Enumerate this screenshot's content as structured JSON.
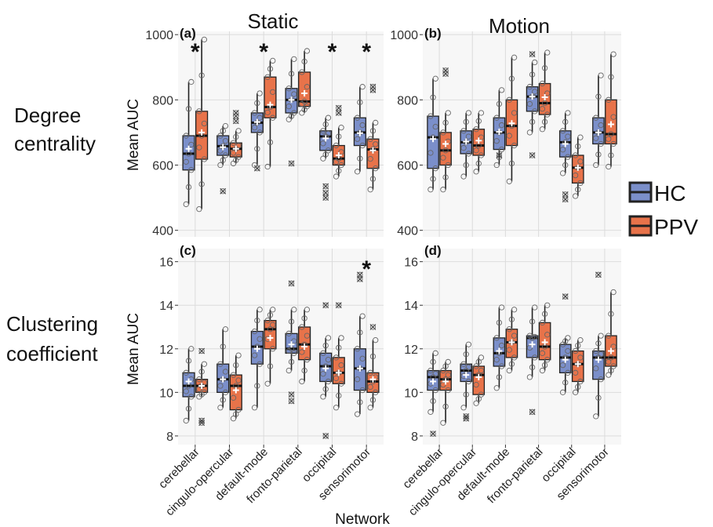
{
  "figure": {
    "column_titles": [
      "Static",
      "Motion"
    ],
    "row_titles": [
      [
        "Degree",
        "centrality"
      ],
      [
        "Clustering",
        "coefficient"
      ]
    ],
    "xlabel": "Network",
    "ylabel": "Mean AUC",
    "legend": [
      {
        "label": "HC",
        "color": "#7b8fca"
      },
      {
        "label": "PPV",
        "color": "#e8734a"
      }
    ],
    "colors": {
      "HC": "#7b8fca",
      "PPV": "#e8734a",
      "panel_bg": "#f7f7f7",
      "grid": "#dcdcdc"
    }
  },
  "chart_data": [
    {
      "panel": "(a)",
      "type": "box",
      "categories": [
        "cerebellar",
        "cingulo-opercular",
        "default-mode",
        "fronto-parietal",
        "occipital",
        "sensorimotor"
      ],
      "ylim": [
        380,
        1010
      ],
      "yticks": [
        400,
        600,
        800,
        1000
      ],
      "significant": [
        true,
        false,
        true,
        false,
        true,
        true
      ],
      "series": [
        {
          "name": "HC",
          "boxes": [
            {
              "min": 480,
              "q1": 585,
              "median": 635,
              "q3": 690,
              "max": 855,
              "mean": 650,
              "outliers": []
            },
            {
              "min": 600,
              "q1": 630,
              "median": 658,
              "q3": 690,
              "max": 720,
              "mean": 655,
              "outliers": [
                520
              ]
            },
            {
              "min": 600,
              "q1": 700,
              "median": 730,
              "q3": 760,
              "max": 820,
              "mean": 732,
              "outliers": [
                590
              ]
            },
            {
              "min": 740,
              "q1": 760,
              "median": 800,
              "q3": 835,
              "max": 925,
              "mean": 800,
              "outliers": [
                605
              ]
            },
            {
              "min": 620,
              "q1": 645,
              "median": 688,
              "q3": 705,
              "max": 745,
              "mean": 682,
              "outliers": [
                500,
                515,
                535
              ]
            },
            {
              "min": 580,
              "q1": 660,
              "median": 700,
              "q3": 745,
              "max": 840,
              "mean": 698,
              "outliers": []
            }
          ]
        },
        {
          "name": "PPV",
          "boxes": [
            {
              "min": 465,
              "q1": 618,
              "median": 690,
              "q3": 765,
              "max": 985,
              "mean": 700,
              "outliers": []
            },
            {
              "min": 605,
              "q1": 625,
              "median": 650,
              "q3": 668,
              "max": 705,
              "mean": 650,
              "outliers": [
                735,
                750,
                760
              ]
            },
            {
              "min": 595,
              "q1": 745,
              "median": 778,
              "q3": 870,
              "max": 920,
              "mean": 785,
              "outliers": []
            },
            {
              "min": 760,
              "q1": 780,
              "median": 795,
              "q3": 885,
              "max": 950,
              "mean": 820,
              "outliers": []
            },
            {
              "min": 565,
              "q1": 600,
              "median": 620,
              "q3": 660,
              "max": 715,
              "mean": 630,
              "outliers": [
                760,
                775
              ]
            },
            {
              "min": 525,
              "q1": 590,
              "median": 648,
              "q3": 680,
              "max": 730,
              "mean": 645,
              "outliers": [
                830,
                840
              ]
            }
          ]
        }
      ]
    },
    {
      "panel": "(b)",
      "type": "box",
      "categories": [
        "cerebellar",
        "cingulo-opercular",
        "default-mode",
        "fronto-parietal",
        "occipital",
        "sensorimotor"
      ],
      "ylim": [
        380,
        1010
      ],
      "yticks": [
        400,
        600,
        800,
        1000
      ],
      "significant": [
        false,
        false,
        false,
        false,
        false,
        false
      ],
      "series": [
        {
          "name": "HC",
          "boxes": [
            {
              "min": 525,
              "q1": 590,
              "median": 685,
              "q3": 750,
              "max": 865,
              "mean": 680,
              "outliers": []
            },
            {
              "min": 565,
              "q1": 635,
              "median": 670,
              "q3": 705,
              "max": 760,
              "mean": 672,
              "outliers": []
            },
            {
              "min": 600,
              "q1": 648,
              "median": 700,
              "q3": 745,
              "max": 830,
              "mean": 702,
              "outliers": [
                630
              ]
            },
            {
              "min": 700,
              "q1": 765,
              "median": 810,
              "q3": 840,
              "max": 915,
              "mean": 810,
              "outliers": [
                630,
                940
              ]
            },
            {
              "min": 575,
              "q1": 625,
              "median": 670,
              "q3": 705,
              "max": 760,
              "mean": 665,
              "outliers": [
                495,
                510
              ]
            },
            {
              "min": 600,
              "q1": 665,
              "median": 700,
              "q3": 745,
              "max": 875,
              "mean": 700,
              "outliers": []
            }
          ]
        },
        {
          "name": "PPV",
          "boxes": [
            {
              "min": 525,
              "q1": 600,
              "median": 645,
              "q3": 700,
              "max": 760,
              "mean": 665,
              "outliers": [
                880,
                890
              ]
            },
            {
              "min": 580,
              "q1": 630,
              "median": 660,
              "q3": 710,
              "max": 760,
              "mean": 675,
              "outliers": []
            },
            {
              "min": 550,
              "q1": 660,
              "median": 720,
              "q3": 800,
              "max": 930,
              "mean": 728,
              "outliers": []
            },
            {
              "min": 710,
              "q1": 755,
              "median": 790,
              "q3": 850,
              "max": 945,
              "mean": 808,
              "outliers": []
            },
            {
              "min": 505,
              "q1": 545,
              "median": 592,
              "q3": 630,
              "max": 685,
              "mean": 592,
              "outliers": []
            },
            {
              "min": 595,
              "q1": 665,
              "median": 695,
              "q3": 800,
              "max": 940,
              "mean": 725,
              "outliers": []
            }
          ]
        }
      ]
    },
    {
      "panel": "(c)",
      "type": "box",
      "categories": [
        "cerebellar",
        "cingulo-opercular",
        "default-mode",
        "fronto-parietal",
        "occipital",
        "sensorimotor"
      ],
      "ylim": [
        7.6,
        16.6
      ],
      "yticks": [
        8,
        10,
        12,
        14,
        16
      ],
      "significant": [
        false,
        false,
        false,
        false,
        false,
        true
      ],
      "series": [
        {
          "name": "HC",
          "boxes": [
            {
              "min": 8.7,
              "q1": 9.8,
              "median": 10.3,
              "q3": 10.9,
              "max": 12.0,
              "mean": 10.5,
              "outliers": []
            },
            {
              "min": 9.3,
              "q1": 10.0,
              "median": 10.6,
              "q3": 11.3,
              "max": 12.9,
              "mean": 10.6,
              "outliers": []
            },
            {
              "min": 9.3,
              "q1": 11.3,
              "median": 12.1,
              "q3": 12.8,
              "max": 13.8,
              "mean": 12.0,
              "outliers": []
            },
            {
              "min": 11.0,
              "q1": 11.8,
              "median": 12.0,
              "q3": 12.7,
              "max": 13.8,
              "mean": 12.2,
              "outliers": [
                9.6,
                9.9,
                15.0
              ]
            },
            {
              "min": 9.8,
              "q1": 10.5,
              "median": 11.2,
              "q3": 11.8,
              "max": 12.5,
              "mean": 11.1,
              "outliers": [
                8.0,
                14.0
              ]
            },
            {
              "min": 9.0,
              "q1": 10.1,
              "median": 11.1,
              "q3": 12.0,
              "max": 13.5,
              "mean": 11.1,
              "outliers": [
                15.2,
                15.4
              ]
            }
          ]
        },
        {
          "name": "PPV",
          "boxes": [
            {
              "min": 9.8,
              "q1": 10.0,
              "median": 10.3,
              "q3": 10.6,
              "max": 11.3,
              "mean": 10.3,
              "outliers": [
                8.6,
                8.7,
                11.9
              ]
            },
            {
              "min": 8.8,
              "q1": 9.2,
              "median": 10.3,
              "q3": 10.8,
              "max": 11.7,
              "mean": 10.1,
              "outliers": []
            },
            {
              "min": 10.4,
              "q1": 12.0,
              "median": 12.9,
              "q3": 13.3,
              "max": 13.8,
              "mean": 12.5,
              "outliers": []
            },
            {
              "min": 10.5,
              "q1": 11.5,
              "median": 12.2,
              "q3": 13.0,
              "max": 13.8,
              "mean": 12.1,
              "outliers": []
            },
            {
              "min": 9.3,
              "q1": 10.4,
              "median": 10.9,
              "q3": 11.6,
              "max": 12.5,
              "mean": 10.9,
              "outliers": [
                14.0
              ]
            },
            {
              "min": 9.3,
              "q1": 10.0,
              "median": 10.5,
              "q3": 10.9,
              "max": 12.4,
              "mean": 10.6,
              "outliers": [
                13.0
              ]
            }
          ]
        }
      ]
    },
    {
      "panel": "(d)",
      "type": "box",
      "categories": [
        "cerebellar",
        "cingulo-opercular",
        "default-mode",
        "fronto-parietal",
        "occipital",
        "sensorimotor"
      ],
      "ylim": [
        7.6,
        16.6
      ],
      "yticks": [
        8,
        10,
        12,
        14,
        16
      ],
      "significant": [
        false,
        false,
        false,
        false,
        false,
        false
      ],
      "series": [
        {
          "name": "HC",
          "boxes": [
            {
              "min": 9.1,
              "q1": 10.1,
              "median": 10.7,
              "q3": 11.0,
              "max": 11.8,
              "mean": 10.5,
              "outliers": [
                8.1
              ]
            },
            {
              "min": 9.3,
              "q1": 10.5,
              "median": 11.0,
              "q3": 11.3,
              "max": 12.2,
              "mean": 10.8,
              "outliers": [
                8.8,
                8.9
              ]
            },
            {
              "min": 10.2,
              "q1": 11.2,
              "median": 11.8,
              "q3": 12.5,
              "max": 13.9,
              "mean": 11.9,
              "outliers": []
            },
            {
              "min": 10.7,
              "q1": 11.6,
              "median": 12.5,
              "q3": 12.6,
              "max": 13.9,
              "mean": 12.2,
              "outliers": [
                9.1
              ]
            },
            {
              "min": 10.0,
              "q1": 10.9,
              "median": 11.6,
              "q3": 12.2,
              "max": 12.5,
              "mean": 11.5,
              "outliers": [
                14.4
              ]
            },
            {
              "min": 8.9,
              "q1": 10.6,
              "median": 11.6,
              "q3": 11.9,
              "max": 12.6,
              "mean": 11.5,
              "outliers": [
                15.4
              ]
            }
          ]
        },
        {
          "name": "PPV",
          "boxes": [
            {
              "min": 8.6,
              "q1": 10.1,
              "median": 10.6,
              "q3": 11.0,
              "max": 11.4,
              "mean": 10.5,
              "outliers": []
            },
            {
              "min": 9.5,
              "q1": 9.9,
              "median": 10.8,
              "q3": 11.2,
              "max": 11.6,
              "mean": 10.7,
              "outliers": []
            },
            {
              "min": 11.0,
              "q1": 11.6,
              "median": 12.3,
              "q3": 12.9,
              "max": 13.8,
              "mean": 12.3,
              "outliers": []
            },
            {
              "min": 11.0,
              "q1": 11.5,
              "median": 12.1,
              "q3": 13.2,
              "max": 14.0,
              "mean": 12.3,
              "outliers": []
            },
            {
              "min": 10.0,
              "q1": 10.5,
              "median": 11.3,
              "q3": 11.9,
              "max": 12.4,
              "mean": 11.3,
              "outliers": []
            },
            {
              "min": 10.8,
              "q1": 11.2,
              "median": 11.6,
              "q3": 12.6,
              "max": 14.6,
              "mean": 11.9,
              "outliers": []
            }
          ]
        }
      ]
    }
  ]
}
